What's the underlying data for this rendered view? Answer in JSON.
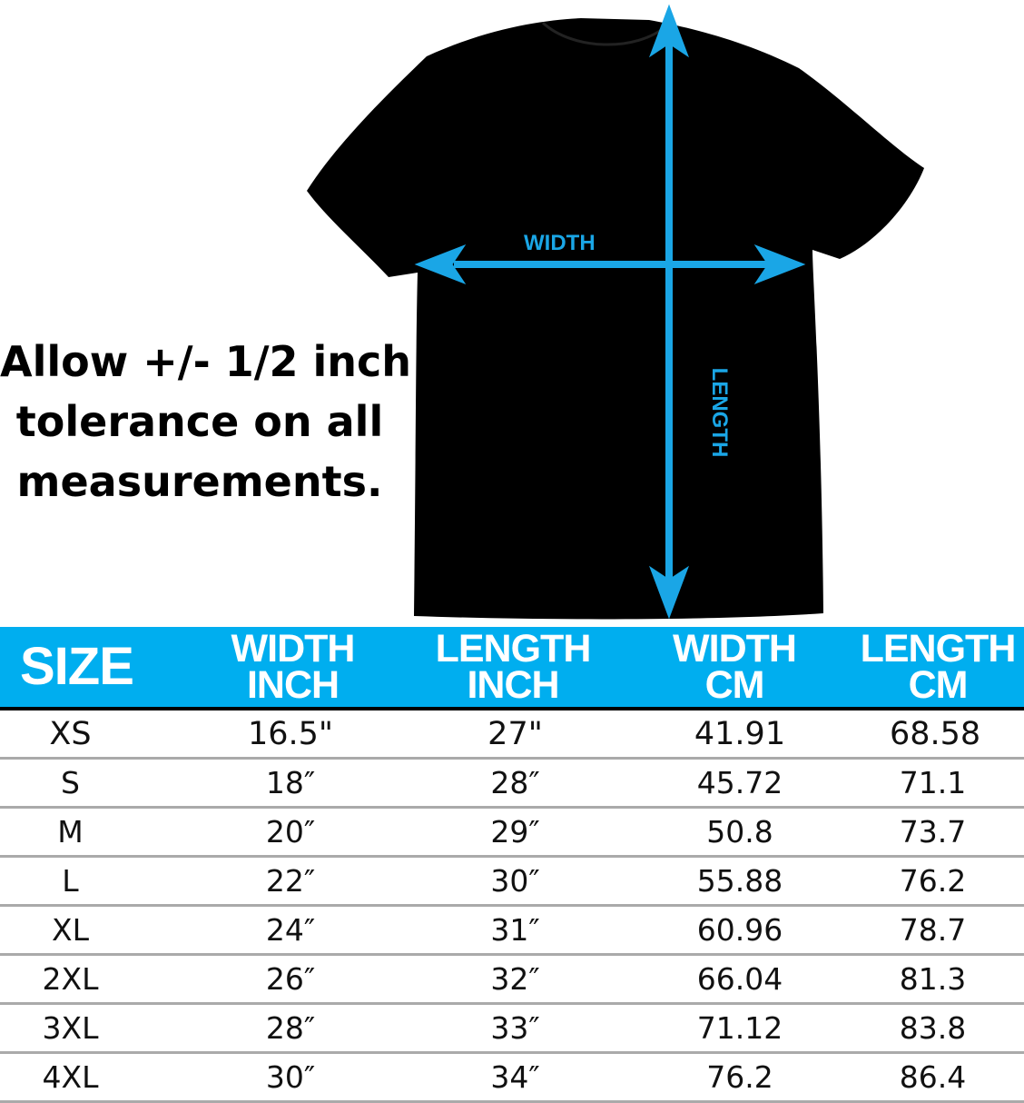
{
  "note": [
    "Allow +/- 1/2 inch",
    "tolerance on all",
    "measurements."
  ],
  "diagram": {
    "width_label": "WIDTH",
    "length_label": "LENGTH",
    "arrow_color": "#1aa6e6",
    "shirt_color": "#000000"
  },
  "table": {
    "header_color": "#00aeef",
    "headers": [
      [
        "SIZE"
      ],
      [
        "WIDTH",
        "INCH"
      ],
      [
        "LENGTH",
        "INCH"
      ],
      [
        "WIDTH",
        "CM"
      ],
      [
        "LENGTH",
        "CM"
      ]
    ],
    "rows": [
      [
        "XS",
        "16.5\"",
        "27\"",
        "41.91",
        "68.58"
      ],
      [
        "S",
        "18″",
        "28″",
        "45.72",
        "71.1"
      ],
      [
        "M",
        "20″",
        "29″",
        "50.8",
        "73.7"
      ],
      [
        "L",
        "22″",
        "30″",
        "55.88",
        "76.2"
      ],
      [
        "XL",
        "24″",
        "31″",
        "60.96",
        "78.7"
      ],
      [
        "2XL",
        "26″",
        "32″",
        "66.04",
        "81.3"
      ],
      [
        "3XL",
        "28″",
        "33″",
        "71.12",
        "83.8"
      ],
      [
        "4XL",
        "30″",
        "34″",
        "76.2",
        "86.4"
      ]
    ]
  }
}
